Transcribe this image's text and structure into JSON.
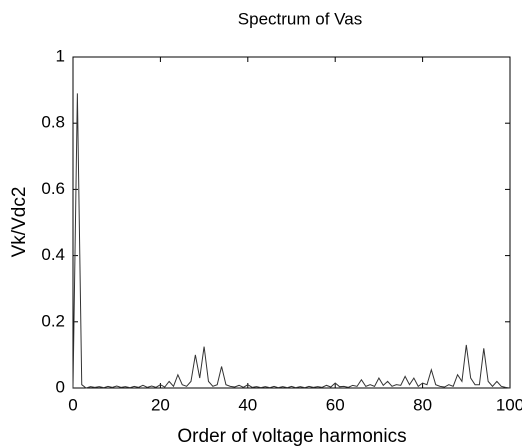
{
  "chart_data": {
    "type": "line",
    "title": "Spectrum of Vas",
    "xlabel": "Order of voltage harmonics",
    "ylabel": "Vk/Vdc2",
    "x": [
      0,
      1,
      2,
      3,
      4,
      5,
      6,
      7,
      8,
      9,
      10,
      11,
      12,
      13,
      14,
      15,
      16,
      17,
      18,
      19,
      20,
      21,
      22,
      23,
      24,
      25,
      26,
      27,
      28,
      29,
      30,
      31,
      32,
      33,
      34,
      35,
      36,
      37,
      38,
      39,
      40,
      41,
      42,
      43,
      44,
      45,
      46,
      47,
      48,
      49,
      50,
      51,
      52,
      53,
      54,
      55,
      56,
      57,
      58,
      59,
      60,
      61,
      62,
      63,
      64,
      65,
      66,
      67,
      68,
      69,
      70,
      71,
      72,
      73,
      74,
      75,
      76,
      77,
      78,
      79,
      80,
      81,
      82,
      83,
      84,
      85,
      86,
      87,
      88,
      89,
      90,
      91,
      92,
      93,
      94,
      95,
      96,
      97,
      98,
      99,
      100
    ],
    "series": [
      {
        "color": "#333333",
        "values": [
          0,
          0.89,
          0.01,
          0,
          0.004,
          0.002,
          0.004,
          0.001,
          0.005,
          0.002,
          0.006,
          0.002,
          0.004,
          0.001,
          0.005,
          0.002,
          0.008,
          0.002,
          0.006,
          0.002,
          0.01,
          0.003,
          0.02,
          0.005,
          0.04,
          0.01,
          0.005,
          0.02,
          0.1,
          0.03,
          0.125,
          0.02,
          0.005,
          0.01,
          0.065,
          0.01,
          0.005,
          0.003,
          0.008,
          0.002,
          0.01,
          0.002,
          0.004,
          0.001,
          0.004,
          0.001,
          0.005,
          0.001,
          0.004,
          0.001,
          0.005,
          0.001,
          0.004,
          0.001,
          0.005,
          0.002,
          0.004,
          0.002,
          0.008,
          0.003,
          0.015,
          0.004,
          0.005,
          0.002,
          0.008,
          0.005,
          0.025,
          0.005,
          0.01,
          0.005,
          0.03,
          0.008,
          0.02,
          0.005,
          0.01,
          0.008,
          0.035,
          0.01,
          0.03,
          0.005,
          0.015,
          0.01,
          0.055,
          0.01,
          0.005,
          0.003,
          0.01,
          0.005,
          0.04,
          0.02,
          0.13,
          0.03,
          0.01,
          0.01,
          0.12,
          0.02,
          0.005,
          0.02,
          0.005,
          0.002,
          0
        ]
      }
    ],
    "xlim": [
      0,
      100
    ],
    "xticks": [
      0,
      20,
      40,
      60,
      80,
      100
    ],
    "ylim": [
      0,
      1
    ],
    "yticks": [
      0,
      0.2,
      0.4,
      0.6,
      0.8,
      1
    ],
    "grid": false
  }
}
